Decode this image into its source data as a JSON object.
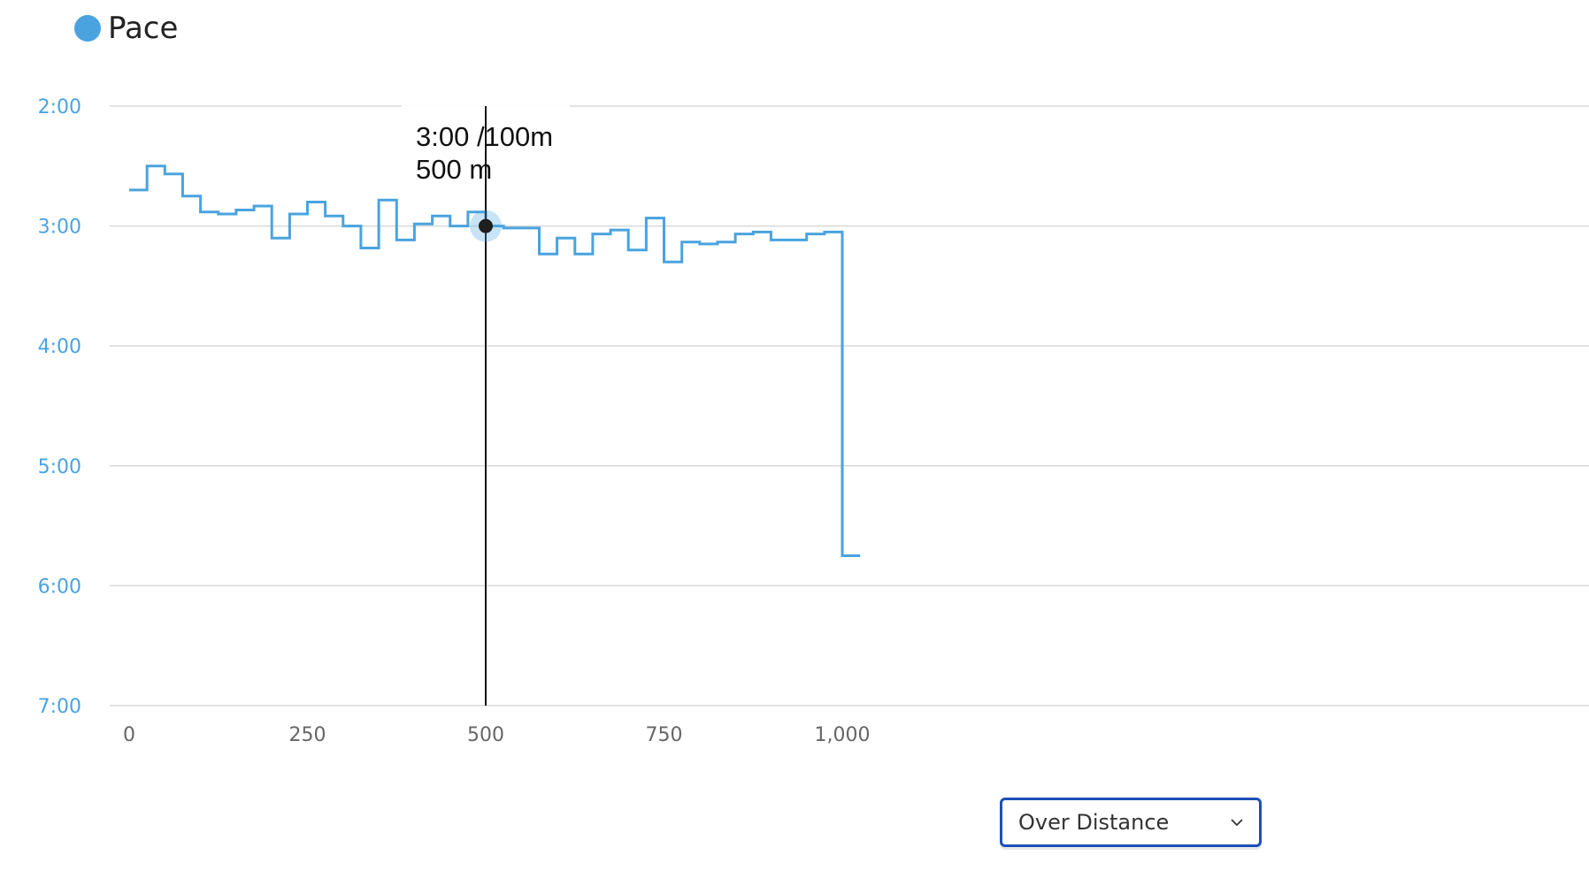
{
  "legend": {
    "label": "Pace",
    "color": "#4aa3df"
  },
  "tooltip": {
    "pace": "3:00 /100m",
    "distance": "500 m",
    "x": 500,
    "y_seconds": 180
  },
  "mode_select": {
    "value": "Over Distance",
    "icon": "chevron-down-icon"
  },
  "chart_data": {
    "type": "line",
    "step": true,
    "xlabel": "",
    "ylabel": "",
    "xlim": [
      0,
      1025
    ],
    "x_ticks": [
      0,
      250,
      500,
      750,
      1000
    ],
    "x_tick_labels": [
      "0",
      "250",
      "500",
      "750",
      "1,000"
    ],
    "y_ticks": [
      120,
      180,
      240,
      300,
      360,
      420
    ],
    "y_tick_labels": [
      "2:00",
      "3:00",
      "4:00",
      "5:00",
      "6:00",
      "7:00"
    ],
    "ylim_seconds": [
      120,
      420
    ],
    "y_inverted": true,
    "grid": "horizontal",
    "legend_position": "top-left",
    "series": [
      {
        "name": "Pace",
        "color": "#4aa3df",
        "x_start": [
          0,
          25,
          50,
          75,
          100,
          125,
          150,
          175,
          200,
          225,
          250,
          275,
          300,
          325,
          350,
          375,
          400,
          425,
          450,
          475,
          500,
          525,
          550,
          575,
          600,
          625,
          650,
          675,
          700,
          725,
          750,
          775,
          800,
          825,
          850,
          875,
          900,
          925,
          950,
          975,
          1000
        ],
        "x_end": [
          25,
          50,
          75,
          100,
          125,
          150,
          175,
          200,
          225,
          250,
          275,
          300,
          325,
          350,
          375,
          400,
          425,
          450,
          475,
          500,
          525,
          550,
          575,
          600,
          625,
          650,
          675,
          700,
          725,
          750,
          775,
          800,
          825,
          850,
          875,
          900,
          925,
          950,
          975,
          1000,
          1025
        ],
        "pace_seconds": [
          162,
          150,
          154,
          165,
          173,
          174,
          172,
          170,
          186,
          174,
          168,
          175,
          180,
          191,
          167,
          187,
          179,
          175,
          180,
          173,
          180,
          181,
          181,
          194,
          186,
          194,
          184,
          182,
          192,
          176,
          198,
          188,
          189,
          188,
          184,
          183,
          187,
          187,
          184,
          183,
          345
        ]
      }
    ]
  }
}
